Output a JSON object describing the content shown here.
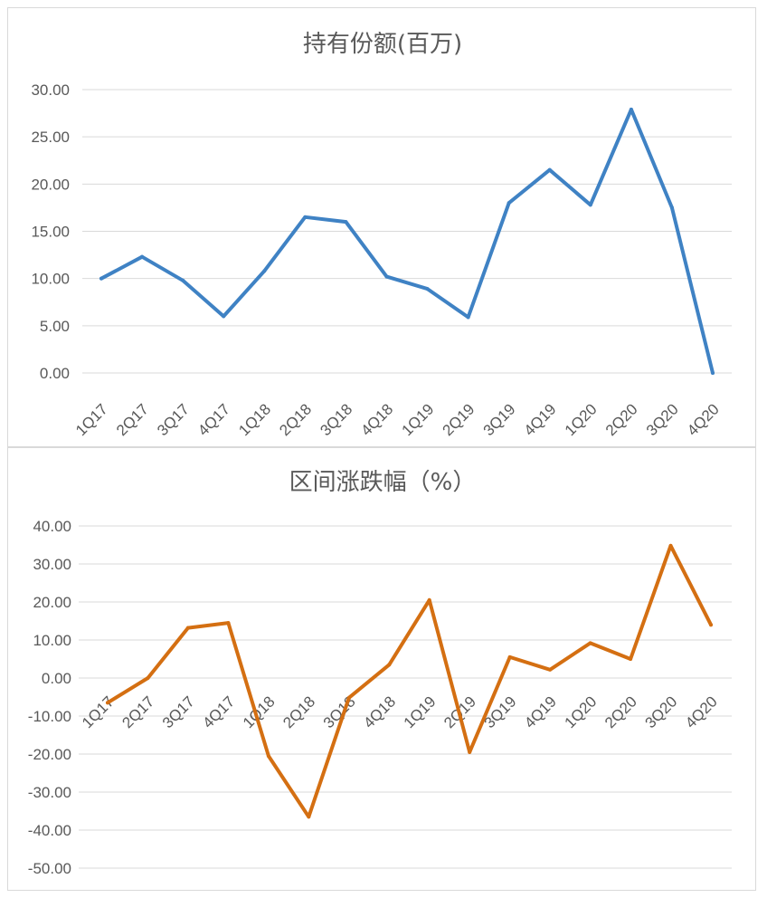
{
  "chart_data": [
    {
      "type": "line",
      "title": "持有份额(百万)",
      "categories": [
        "1Q17",
        "2Q17",
        "3Q17",
        "4Q17",
        "1Q18",
        "2Q18",
        "3Q18",
        "4Q18",
        "1Q19",
        "2Q19",
        "3Q19",
        "4Q19",
        "1Q20",
        "2Q20",
        "3Q20",
        "4Q20"
      ],
      "series": [
        {
          "values": [
            10.0,
            12.3,
            9.8,
            6.0,
            10.8,
            16.5,
            16.0,
            10.2,
            8.9,
            5.9,
            18.0,
            21.5,
            17.8,
            27.9,
            17.5,
            0.0
          ]
        }
      ],
      "y_ticks": [
        "0.00",
        "5.00",
        "10.00",
        "15.00",
        "20.00",
        "25.00",
        "30.00"
      ],
      "ylim": [
        0,
        30
      ],
      "grid": true,
      "color": "#3f82c4"
    },
    {
      "type": "line",
      "title": "区间涨跌幅（%）",
      "categories": [
        "1Q17",
        "2Q17",
        "3Q17",
        "4Q17",
        "1Q18",
        "2Q18",
        "3Q18",
        "4Q18",
        "1Q19",
        "2Q19",
        "3Q19",
        "4Q19",
        "1Q20",
        "2Q20",
        "3Q20",
        "4Q20"
      ],
      "series": [
        {
          "values": [
            -6.5,
            0.0,
            13.2,
            14.5,
            -20.5,
            -36.5,
            -5.2,
            3.5,
            20.5,
            -19.5,
            5.5,
            2.2,
            9.2,
            5.0,
            34.8,
            14.0
          ]
        }
      ],
      "y_ticks": [
        "-50.00",
        "-40.00",
        "-30.00",
        "-20.00",
        "-10.00",
        "0.00",
        "10.00",
        "20.00",
        "30.00",
        "40.00"
      ],
      "ylim": [
        -50,
        40
      ],
      "grid": true,
      "color": "#d46f12"
    }
  ]
}
